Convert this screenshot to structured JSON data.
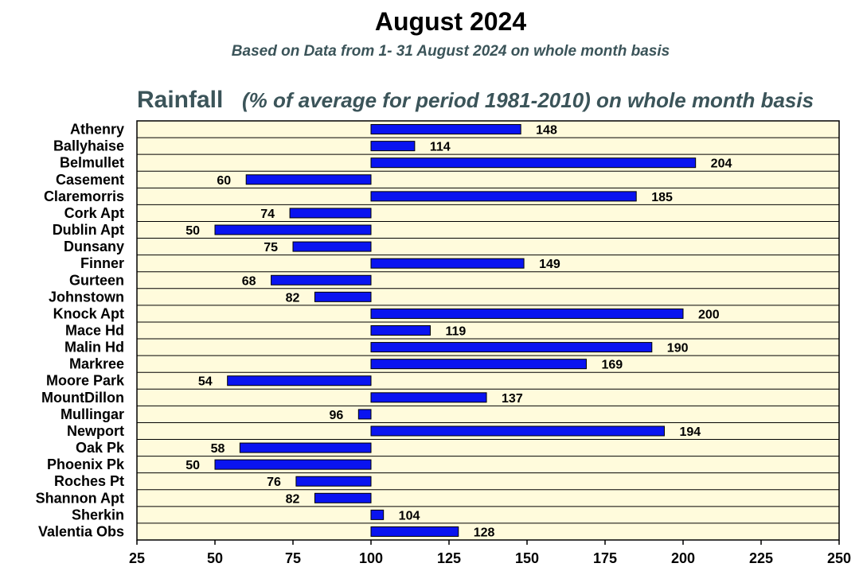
{
  "chart_data": {
    "type": "bar",
    "orientation": "horizontal",
    "title": "August 2024",
    "subtitle": "Based on Data from 1- 31 August 2024 on whole month basis",
    "section_title": "Rainfall",
    "section_subtitle": "(% of average for period 1981-2010) on whole month basis",
    "baseline": 100,
    "xlim": [
      25,
      250
    ],
    "xticks": [
      "25",
      "50",
      "75",
      "100",
      "125",
      "150",
      "175",
      "200",
      "225",
      "250"
    ],
    "categories": [
      "Athenry",
      "Ballyhaise",
      "Belmullet",
      "Casement",
      "Claremorris",
      "Cork Apt",
      "Dublin Apt",
      "Dunsany",
      "Finner",
      "Gurteen",
      "Johnstown",
      "Knock Apt",
      "Mace Hd",
      "Malin Hd",
      "Markree",
      "Moore Park",
      "MountDillon",
      "Mullingar",
      "Newport",
      "Oak Pk",
      "Phoenix Pk",
      "Roches Pt",
      "Shannon Apt",
      "Sherkin",
      "Valentia Obs"
    ],
    "values": [
      148,
      114,
      204,
      60,
      185,
      74,
      50,
      75,
      149,
      68,
      82,
      200,
      119,
      190,
      169,
      54,
      137,
      96,
      194,
      58,
      50,
      76,
      82,
      104,
      128
    ],
    "value_labels": [
      "148",
      "114",
      "204",
      "60",
      "185",
      "74",
      "50",
      "75",
      "149",
      "68",
      "82",
      "200",
      "119",
      "190",
      "169",
      "54",
      "137",
      "96",
      "194",
      "58",
      "50",
      "76",
      "82",
      "104",
      "128"
    ],
    "colors": {
      "bar": "#0a14f0",
      "plot_background": "#fffbdc",
      "title": "#000000",
      "subtitle": "#3b5459",
      "section": "#3b5459"
    }
  }
}
